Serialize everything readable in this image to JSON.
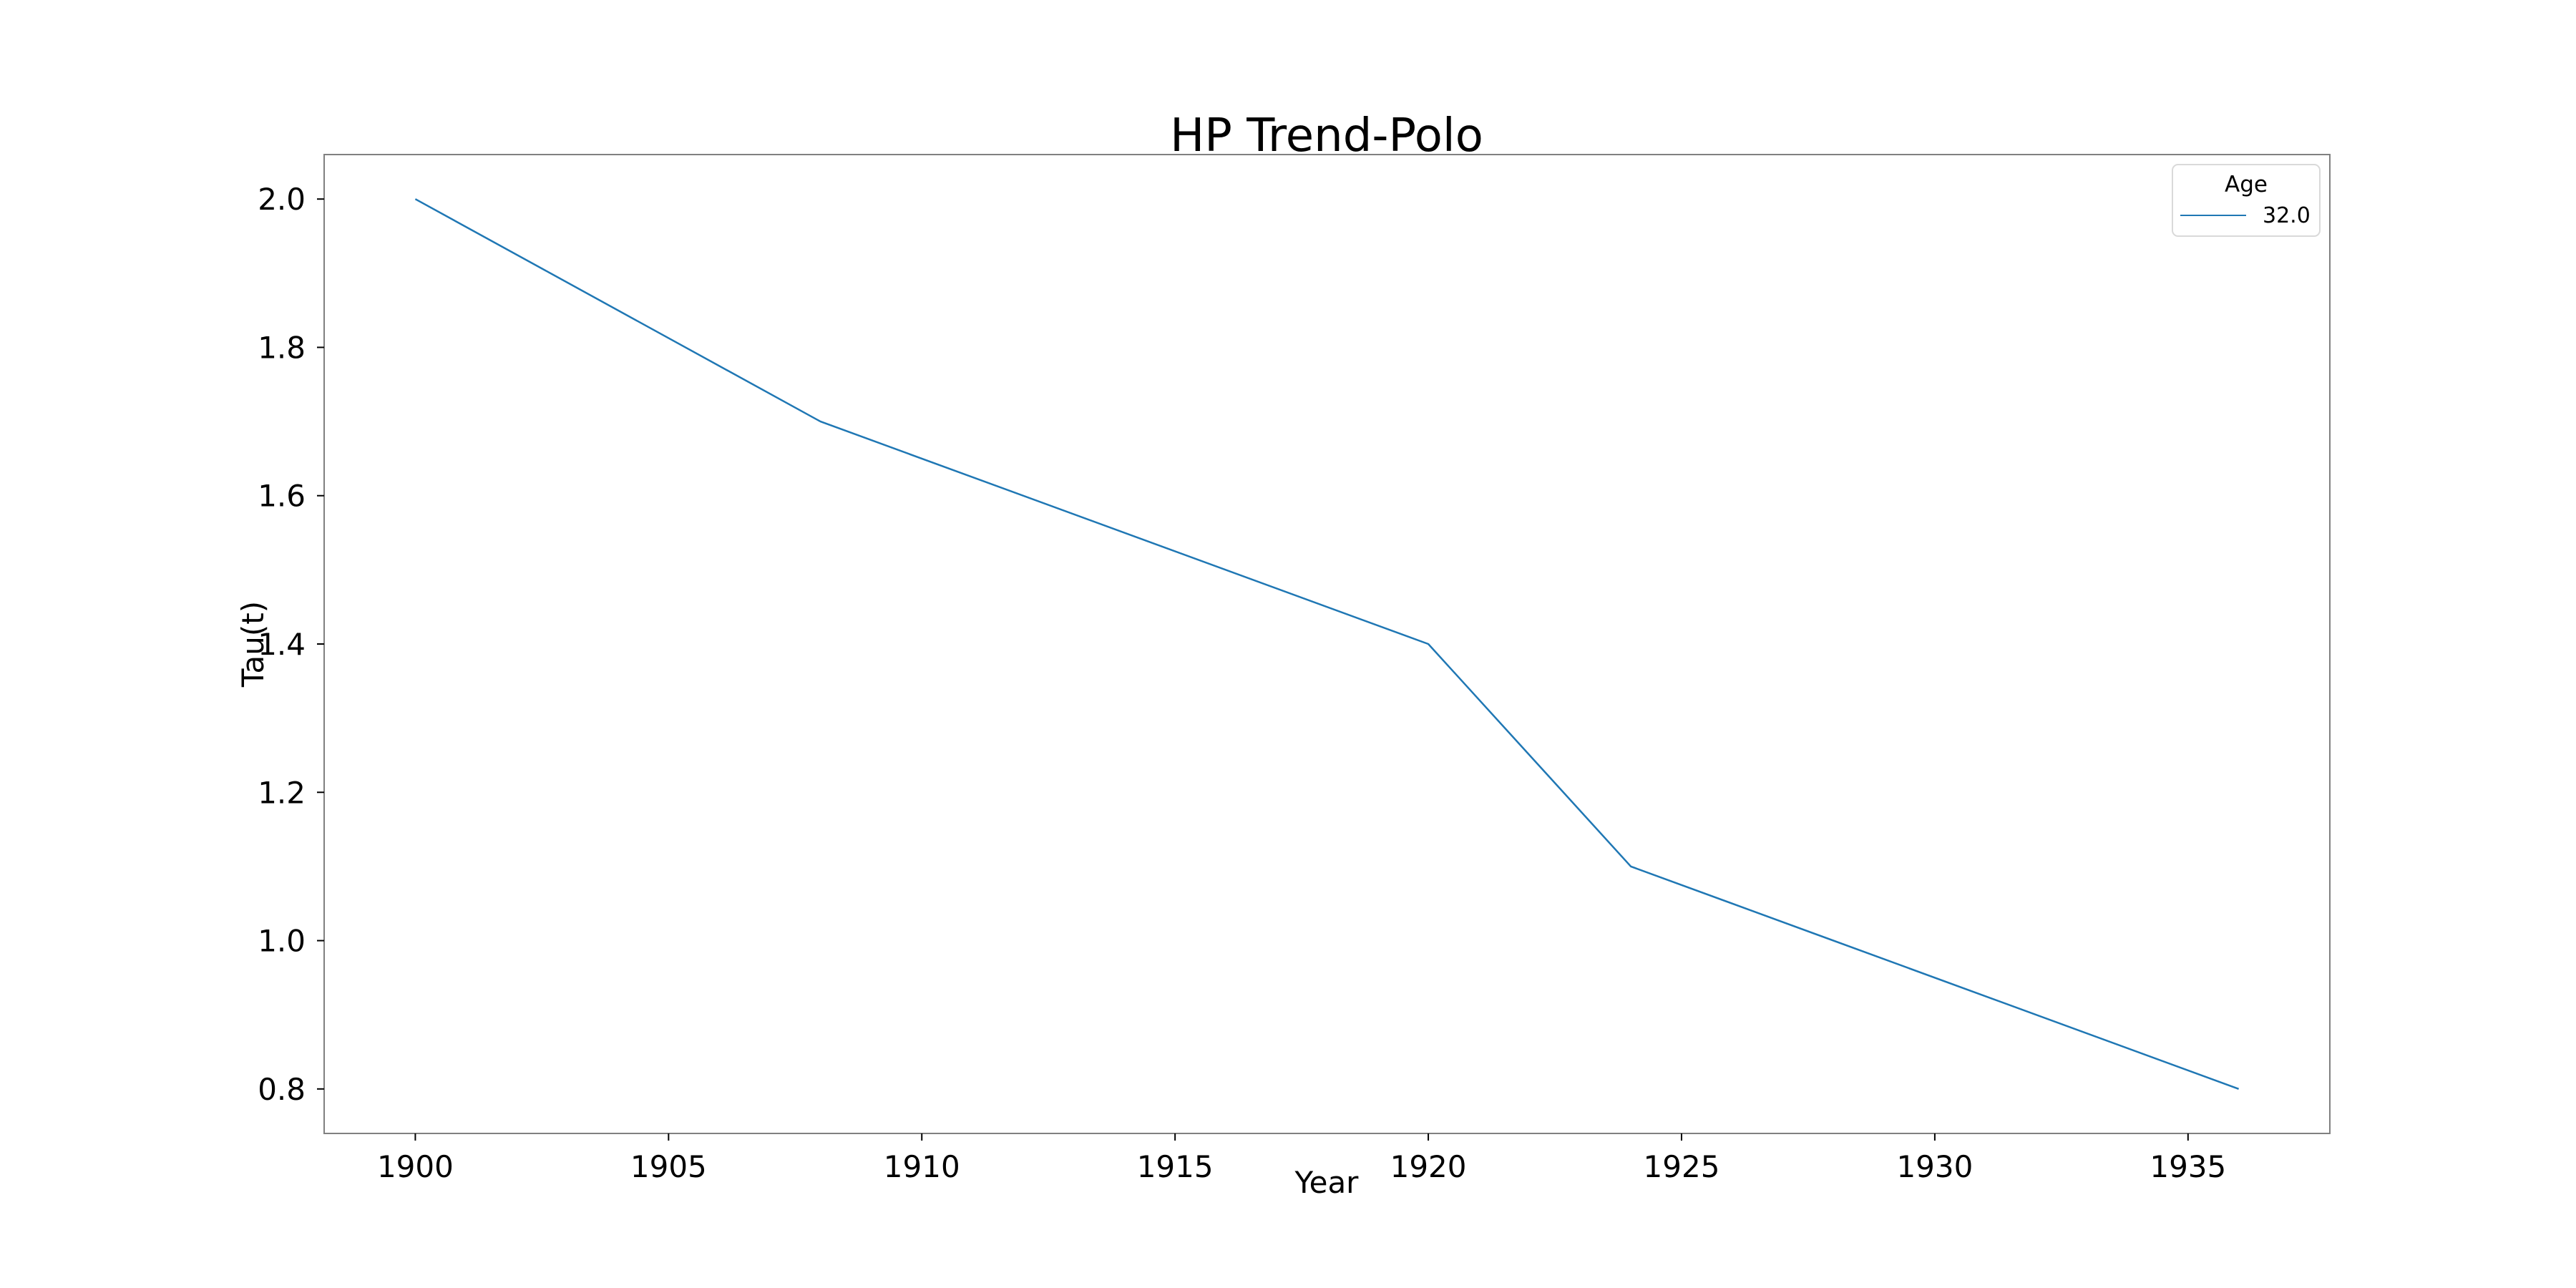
{
  "chart_data": {
    "type": "line",
    "title": "HP Trend-Polo",
    "xlabel": "Year",
    "ylabel": "Tau(t)",
    "xlim": [
      1898.2,
      1937.8
    ],
    "ylim": [
      0.74,
      2.06
    ],
    "x_ticks": [
      1900,
      1905,
      1910,
      1915,
      1920,
      1925,
      1930,
      1935
    ],
    "x_tick_labels": [
      "1900",
      "1905",
      "1910",
      "1915",
      "1920",
      "1925",
      "1930",
      "1935"
    ],
    "y_ticks": [
      0.8,
      1.0,
      1.2,
      1.4,
      1.6,
      1.8,
      2.0
    ],
    "y_tick_labels": [
      "0.8",
      "1.0",
      "1.2",
      "1.4",
      "1.6",
      "1.8",
      "2.0"
    ],
    "grid": false,
    "legend": {
      "title": "Age",
      "placement": "top-right"
    },
    "series": [
      {
        "name": "32.0",
        "color": "#1f77b4",
        "x": [
          1900,
          1908,
          1920,
          1924,
          1936
        ],
        "y": [
          2.0,
          1.7,
          1.4,
          1.1,
          0.8
        ]
      }
    ]
  }
}
